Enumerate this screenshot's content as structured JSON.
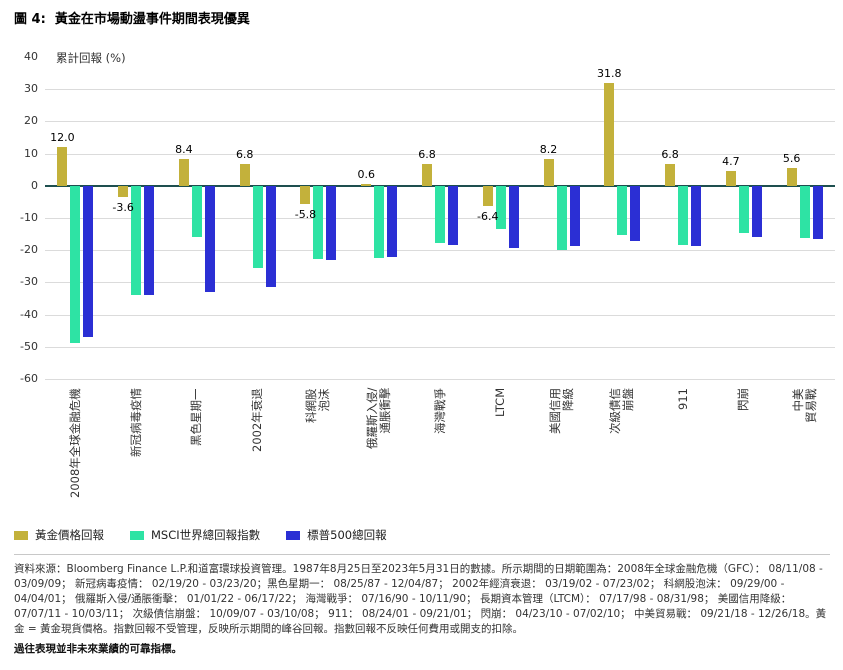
{
  "title": "圖 4:  黃金在市場動盪事件期間表現優異",
  "legend": [
    {
      "label": "黃金價格回報",
      "color": "#C3B13B"
    },
    {
      "label": "MSCI世界總回報指數",
      "color": "#2EE3A4"
    },
    {
      "label": "標普500總回報",
      "color": "#2B2FD4"
    }
  ],
  "footer": {
    "source": "資料來源：Bloomberg Finance L.P.和道富環球投資管理。1987年8月25日至2023年5月31日的數據。所示期間的日期範圍為：2008年全球金融危機（GFC）： 08/11/08 - 03/09/09； 新冠病毒疫情： 02/19/20 - 03/23/20；黑色星期一： 08/25/87 - 12/04/87； 2002年經濟衰退： 03/19/02 - 07/23/02； 科網股泡沫： 09/29/00 - 04/04/01； 俄羅斯入侵/通脹衝擊： 01/01/22 - 06/17/22； 海灣戰爭： 07/16/90 - 10/11/90； 長期資本管理（LTCM）： 07/17/98 - 08/31/98； 美國信用降級： 07/07/11 - 10/03/11； 次級債信崩盤： 10/09/07 - 03/10/08； 911： 08/24/01 - 09/21/01； 閃崩： 04/23/10 - 07/02/10； 中美貿易戰： 09/21/18 - 12/26/18。黃金 = 黃金現貨價格。指數回報不受管理，反映所示期間的峰谷回報。指數回報不反映任何費用或開支的扣除。",
    "disclaimer": "過往表現並非未來業績的可靠指標。"
  },
  "chart_data": {
    "type": "bar",
    "title": "黃金在市場動盪事件期間表現優異",
    "ylabel": "累計回報 (%)",
    "ylim": [
      -60,
      40
    ],
    "ytick_step": 10,
    "grid": true,
    "legend_position": "bottom",
    "categories": [
      "2008年全球金融危機",
      "新冠病毒疫情",
      "黑色星期一",
      "2002年衰退",
      "科網股\n泡沫",
      "俄羅斯入侵/\n通脹衝擊",
      "海灣戰爭",
      "LTCM",
      "美國信用\n降級",
      "次級債信\n崩盤",
      "911",
      "閃崩",
      "中美\n貿易戰"
    ],
    "series": [
      {
        "name": "黃金價格回報",
        "color": "#C3B13B",
        "values": [
          12.0,
          -3.6,
          8.4,
          6.8,
          -5.8,
          0.6,
          6.8,
          -6.4,
          8.2,
          31.8,
          6.8,
          4.7,
          5.6
        ],
        "labels": [
          "12.0",
          "-3.6",
          "8.4",
          "6.8",
          "-5.8",
          "0.6",
          "6.8",
          "-6.4",
          "8.2",
          "31.8",
          "6.8",
          "4.7",
          "5.6"
        ]
      },
      {
        "name": "MSCI世界總回報指數",
        "color": "#2EE3A4",
        "values": [
          -48.9,
          -34.0,
          -15.8,
          -25.5,
          -22.6,
          -22.3,
          -17.8,
          -13.4,
          -19.8,
          -15.4,
          -18.4,
          -14.7,
          -16.1
        ]
      },
      {
        "name": "標普500總回報",
        "color": "#2B2FD4",
        "values": [
          -46.9,
          -33.8,
          -32.9,
          -31.5,
          -22.9,
          -22.1,
          -18.3,
          -19.2,
          -18.6,
          -17.1,
          -18.8,
          -15.9,
          -16.4
        ]
      }
    ]
  }
}
